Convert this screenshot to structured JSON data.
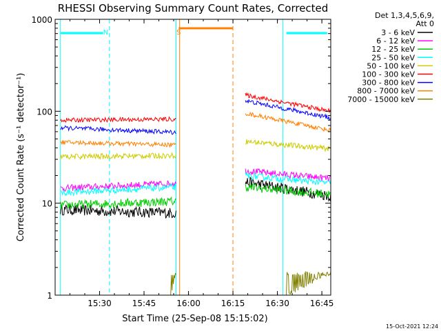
{
  "chart_data": {
    "type": "line",
    "title": "RHESSI Observing Summary Count Rates, Corrected",
    "xlabel": "Start Time (25-Sep-08 15:15:02)",
    "ylabel": "Corrected Count Rate (s⁻¹ detector⁻¹)",
    "footer": "15-Oct-2021 12:24",
    "yscale": "log",
    "ylim": [
      1,
      1000
    ],
    "xlim_minutes": [
      15.25,
      16.8
    ],
    "x_tick_labels": [
      "15:30",
      "15:45",
      "16:00",
      "16:15",
      "16:30",
      "16:45"
    ],
    "x_tick_minutes": [
      15.5,
      15.75,
      16.0,
      16.25,
      16.5,
      16.75
    ],
    "y_tick_labels": [
      "1",
      "10",
      "100",
      "1000"
    ],
    "y_tick_values": [
      1,
      10,
      100,
      1000
    ],
    "grid": false,
    "legend_header": [
      "Det 1,3,4,5,6,9,",
      "Att 0"
    ],
    "legend_placement": "right",
    "series": [
      {
        "name": "3 - 6 keV",
        "color": "#000000",
        "segments": [
          [
            15.28,
            15.93,
            8.5,
            7.8,
            1.0
          ],
          [
            16.32,
            16.8,
            17.0,
            12.0,
            1.0
          ]
        ]
      },
      {
        "name": "6 - 12 keV",
        "color": "#ff00ff",
        "segments": [
          [
            15.28,
            15.93,
            14.5,
            16.5,
            0.6
          ],
          [
            16.32,
            16.8,
            22.5,
            18.5,
            0.6
          ]
        ]
      },
      {
        "name": "12 - 25 keV",
        "color": "#00cc00",
        "segments": [
          [
            15.28,
            15.93,
            9.5,
            10.5,
            0.8
          ],
          [
            16.32,
            16.8,
            15.0,
            12.5,
            0.8
          ]
        ]
      },
      {
        "name": "25 - 50 keV",
        "color": "#00ffff",
        "segments": [
          [
            15.28,
            15.93,
            13.0,
            15.0,
            0.6
          ],
          [
            16.32,
            16.8,
            20.0,
            16.5,
            0.6
          ]
        ]
      },
      {
        "name": "50 - 100 keV",
        "color": "#cccc00",
        "segments": [
          [
            15.28,
            15.93,
            32.0,
            33.0,
            0.5
          ],
          [
            16.32,
            16.8,
            47.0,
            39.0,
            0.5
          ]
        ]
      },
      {
        "name": "100 - 300 keV",
        "color": "#ff0000",
        "segments": [
          [
            15.28,
            15.93,
            80.0,
            82.0,
            0.4
          ],
          [
            16.32,
            16.8,
            150.0,
            100.0,
            0.4
          ]
        ]
      },
      {
        "name": "300 - 800 keV",
        "color": "#0000ff",
        "segments": [
          [
            15.28,
            15.93,
            66.0,
            59.0,
            0.4
          ],
          [
            16.32,
            16.8,
            130.0,
            85.0,
            0.4
          ]
        ]
      },
      {
        "name": "800 - 7000 keV",
        "color": "#ff8000",
        "segments": [
          [
            15.28,
            15.93,
            46.0,
            43.0,
            0.4
          ],
          [
            16.32,
            16.8,
            95.0,
            62.0,
            0.4
          ]
        ]
      },
      {
        "name": "7000 - 15000 keV",
        "color": "#808000",
        "segments": [
          [
            15.9,
            15.93,
            1.0,
            1.7,
            3.0
          ],
          [
            16.55,
            16.8,
            1.0,
            1.8,
            3.0
          ]
        ]
      }
    ],
    "annotations": [
      {
        "label": "N",
        "color": "#00ffff",
        "x_minutes": 15.535
      },
      {
        "label": "S",
        "color": "#ff8000",
        "x_minutes": 15.945
      }
    ]
  }
}
